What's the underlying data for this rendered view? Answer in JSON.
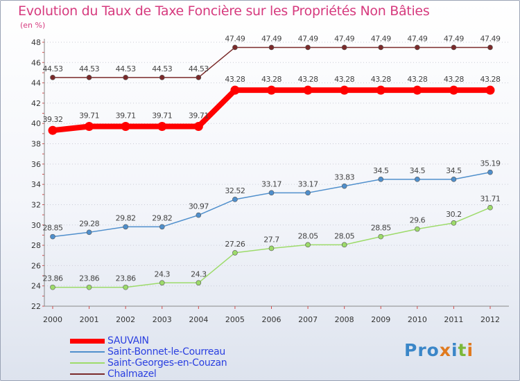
{
  "title": "Evolution du Taux de Taxe Foncière sur les Propriétés Non Bâties",
  "unit_label": "(en %)",
  "brand": {
    "p1": "Pro",
    "x": "x",
    "i": "i",
    "t": "t",
    "i2": "i"
  },
  "chart_data": {
    "type": "line",
    "x": [
      "2000",
      "2001",
      "2002",
      "2003",
      "2004",
      "2005",
      "2006",
      "2007",
      "2008",
      "2009",
      "2010",
      "2011",
      "2012"
    ],
    "ylim": [
      22,
      48
    ],
    "yticks": [
      22,
      24,
      26,
      28,
      30,
      32,
      34,
      36,
      38,
      40,
      42,
      44,
      46,
      48
    ],
    "grid": "horizontal dotted",
    "legend": "bottom-left",
    "series": [
      {
        "name": "SAUVAIN",
        "color": "#ff0000",
        "values": [
          39.32,
          39.71,
          39.71,
          39.71,
          39.71,
          43.28,
          43.28,
          43.28,
          43.28,
          43.28,
          43.28,
          43.28,
          43.28
        ],
        "labels": [
          "39.32",
          "39.71",
          "39.71",
          "39.71",
          "39.71",
          "43.28",
          "43.28",
          "43.28",
          "43.28",
          "43.28",
          "43.28",
          "43.28",
          "43.28"
        ]
      },
      {
        "name": "Saint-Bonnet-le-Courreau",
        "color": "#4f8fcc",
        "values": [
          28.85,
          29.28,
          29.82,
          29.82,
          30.97,
          32.52,
          33.17,
          33.17,
          33.83,
          34.5,
          34.5,
          34.5,
          35.19
        ],
        "labels": [
          "28.85",
          "29.28",
          "29.82",
          "29.82",
          "30.97",
          "32.52",
          "33.17",
          "33.17",
          "33.83",
          "34.5",
          "34.5",
          "34.5",
          "35.19"
        ]
      },
      {
        "name": "Saint-Georges-en-Couzan",
        "color": "#9ddb6a",
        "values": [
          23.86,
          23.86,
          23.86,
          24.3,
          24.3,
          27.26,
          27.7,
          28.05,
          28.05,
          28.85,
          29.6,
          30.2,
          31.71
        ],
        "labels": [
          "23.86",
          "23.86",
          "23.86",
          "24.3",
          "24.3",
          "27.26",
          "27.7",
          "28.05",
          "28.05",
          "28.85",
          "29.6",
          "30.2",
          "31.71"
        ]
      },
      {
        "name": "Chalmazel",
        "color": "#7a2a2a",
        "values": [
          44.53,
          44.53,
          44.53,
          44.53,
          44.53,
          47.49,
          47.49,
          47.49,
          47.49,
          47.49,
          47.49,
          47.49,
          47.49
        ],
        "labels": [
          "44.53",
          "44.53",
          "44.53",
          "44.53",
          "44.53",
          "47.49",
          "47.49",
          "47.49",
          "47.49",
          "47.49",
          "47.49",
          "47.49",
          "47.49"
        ]
      }
    ]
  }
}
